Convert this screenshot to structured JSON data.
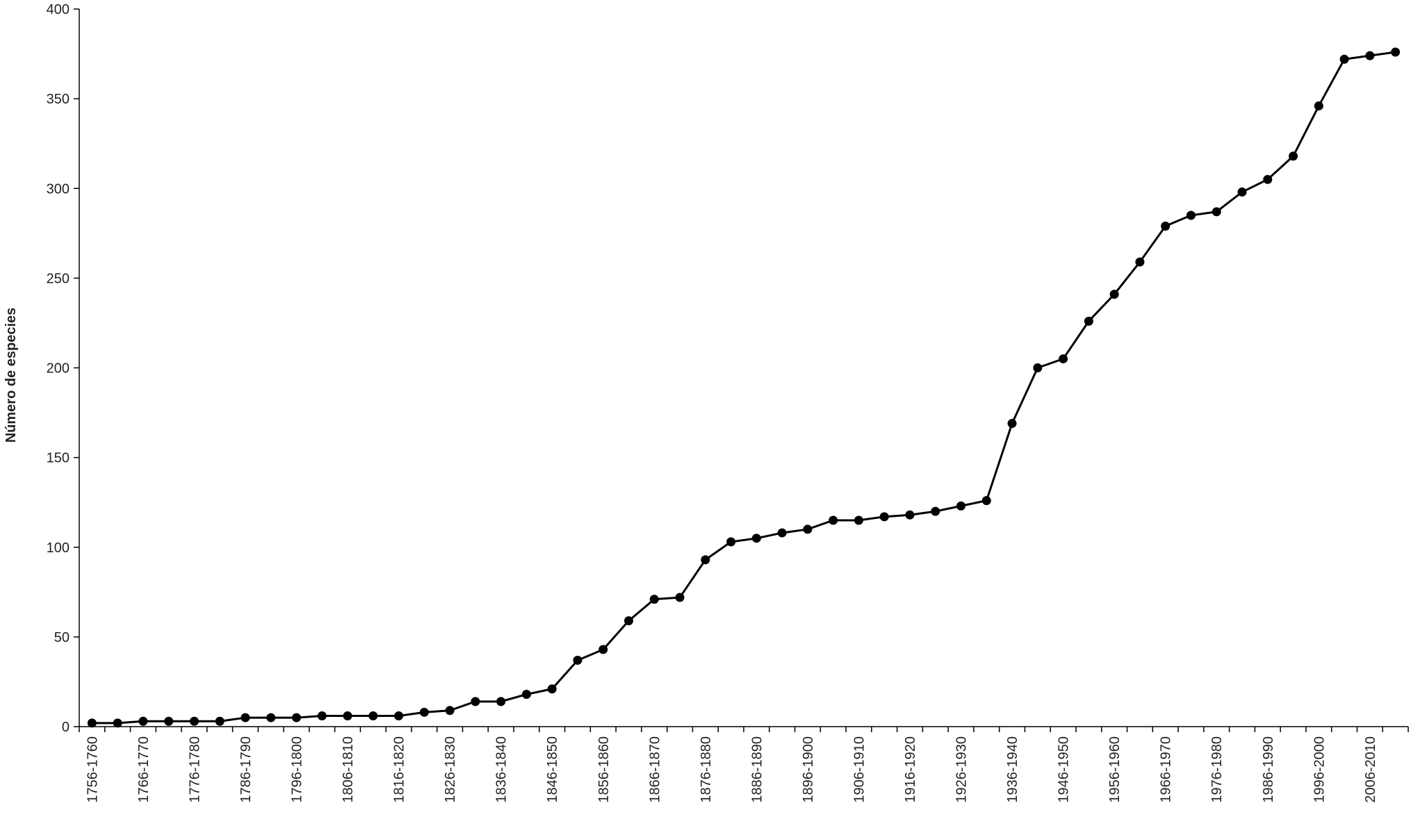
{
  "chart_data": {
    "type": "line",
    "y_label": "Número de especies",
    "categories": [
      "1756-1760",
      null,
      "1766-1770",
      null,
      "1776-1780",
      null,
      "1786-1790",
      null,
      "1796-1800",
      null,
      "1806-1810",
      null,
      "1816-1820",
      null,
      "1826-1830",
      null,
      "1836-1840",
      null,
      "1846-1850",
      null,
      "1856-1860",
      null,
      "1866-1870",
      null,
      "1876-1880",
      null,
      "1886-1890",
      null,
      "1896-1900",
      null,
      "1906-1910",
      null,
      "1916-1920",
      null,
      "1926-1930",
      null,
      "1936-1940",
      null,
      "1946-1950",
      null,
      "1956-1960",
      null,
      "1966-1970",
      null,
      "1976-1980",
      null,
      "1986-1990",
      null,
      "1996-2000",
      null,
      "2006-2010",
      null
    ],
    "values": [
      2,
      2,
      3,
      3,
      3,
      3,
      5,
      5,
      5,
      6,
      6,
      6,
      6,
      8,
      9,
      14,
      14,
      18,
      21,
      37,
      43,
      59,
      71,
      72,
      93,
      103,
      105,
      108,
      110,
      115,
      115,
      117,
      118,
      120,
      123,
      126,
      169,
      200,
      205,
      226,
      241,
      259,
      279,
      285,
      287,
      298,
      305,
      318,
      346,
      372,
      374,
      376
    ],
    "color": "#000000",
    "ylim": [
      0,
      400
    ],
    "yticks": [
      0,
      50,
      100,
      150,
      200,
      250,
      300,
      350,
      400
    ]
  }
}
